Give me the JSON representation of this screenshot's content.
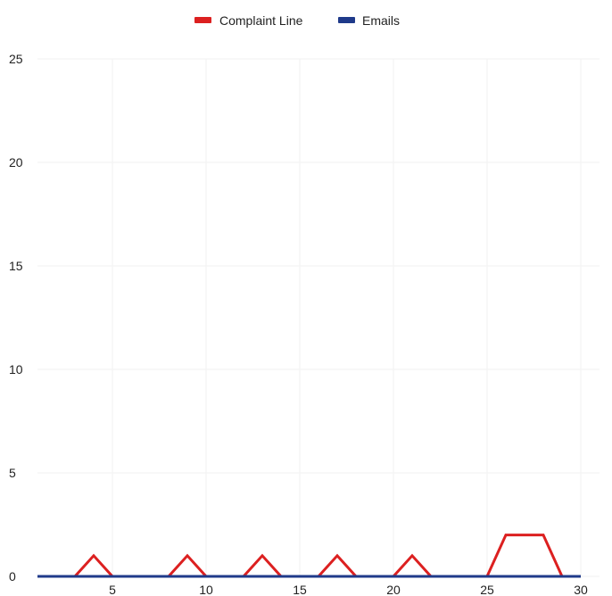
{
  "chart_data": {
    "type": "line",
    "title": "",
    "xlabel": "",
    "ylabel": "",
    "x": [
      1,
      2,
      3,
      4,
      5,
      6,
      7,
      8,
      9,
      10,
      11,
      12,
      13,
      14,
      15,
      16,
      17,
      18,
      19,
      20,
      21,
      22,
      23,
      24,
      25,
      26,
      27,
      28,
      29,
      30
    ],
    "xlim": [
      1,
      31
    ],
    "ylim": [
      0,
      25
    ],
    "x_ticks": [
      5,
      10,
      15,
      20,
      25,
      30
    ],
    "y_ticks": [
      0,
      5,
      10,
      15,
      20,
      25
    ],
    "grid": true,
    "legend_position": "top-center",
    "series": [
      {
        "name": "Complaint Line",
        "color": "#dc2020",
        "values": [
          0,
          0,
          0,
          1,
          0,
          0,
          0,
          0,
          1,
          0,
          0,
          0,
          1,
          0,
          0,
          0,
          1,
          0,
          0,
          0,
          1,
          0,
          0,
          0,
          0,
          2,
          2,
          2,
          0,
          0
        ]
      },
      {
        "name": "Emails",
        "color": "#1f3a8a",
        "values": [
          0,
          0,
          0,
          0,
          0,
          0,
          0,
          0,
          0,
          0,
          0,
          0,
          0,
          0,
          0,
          0,
          0,
          0,
          0,
          0,
          0,
          0,
          0,
          0,
          0,
          0,
          0,
          0,
          0,
          0
        ]
      }
    ]
  }
}
